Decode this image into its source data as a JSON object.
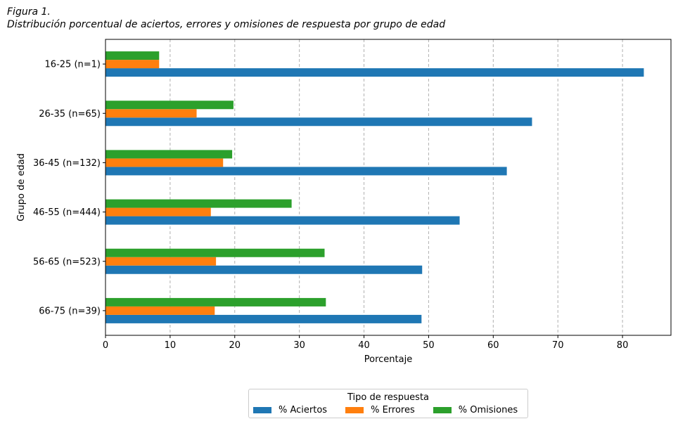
{
  "figure": {
    "label": "Figura 1.",
    "caption": "Distribución porcentual de aciertos, errores y omisiones de respuesta por grupo de edad"
  },
  "chart_data": {
    "type": "bar",
    "orientation": "horizontal",
    "xlabel": "Porcentaje",
    "ylabel": "Grupo de edad",
    "xlim": [
      0,
      87.5
    ],
    "xticks": [
      0,
      10,
      20,
      30,
      40,
      50,
      60,
      70,
      80
    ],
    "grid": "x-dashed",
    "categories": [
      "16-25 (n=1)",
      "26-35 (n=65)",
      "36-45 (n=132)",
      "46-55 (n=444)",
      "56-65 (n=523)",
      "66-75 (n=39)"
    ],
    "series": [
      {
        "name": "% Aciertos",
        "color": "#1f77b4",
        "values": [
          83.3,
          66.0,
          62.1,
          54.8,
          49.0,
          48.9
        ]
      },
      {
        "name": "% Errores",
        "color": "#ff7f0e",
        "values": [
          8.3,
          14.1,
          18.2,
          16.3,
          17.1,
          16.9
        ]
      },
      {
        "name": "% Omisiones",
        "color": "#2ca02c",
        "values": [
          8.3,
          19.8,
          19.6,
          28.8,
          33.9,
          34.1
        ]
      }
    ],
    "legend": {
      "title": "Tipo de respuesta",
      "position": "bottom-center"
    }
  }
}
